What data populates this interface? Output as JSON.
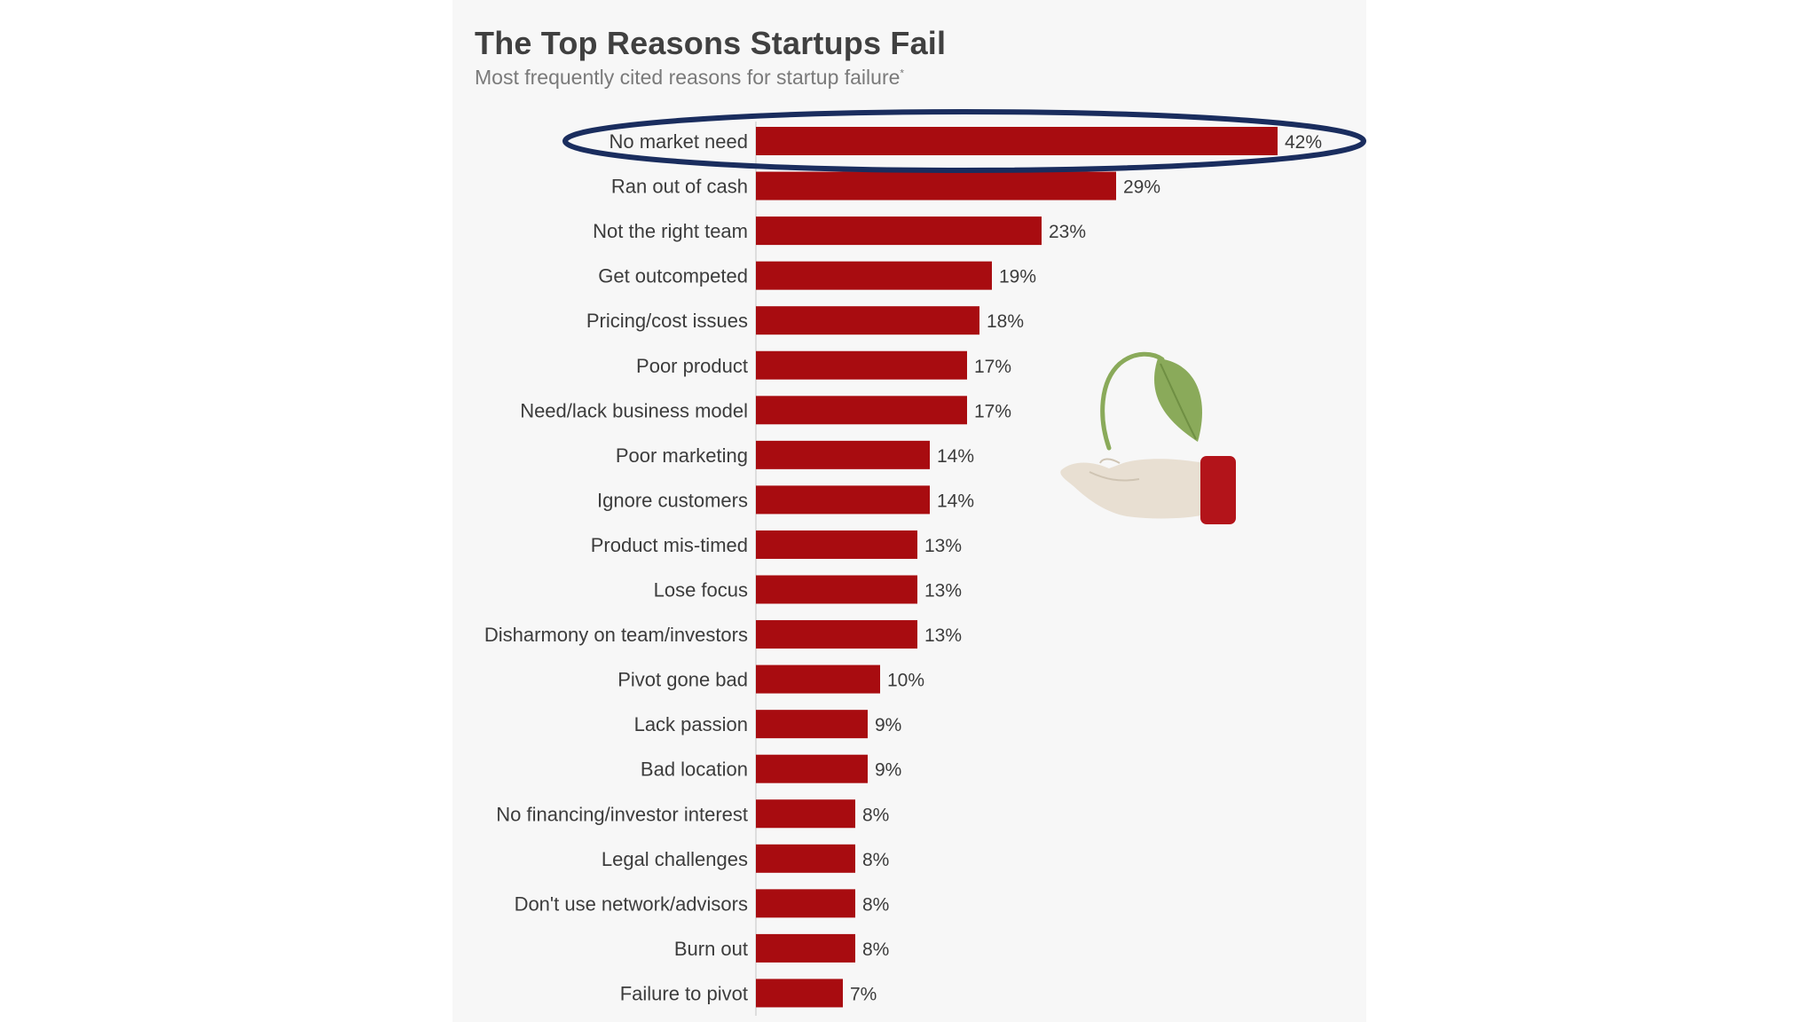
{
  "chart_data": {
    "type": "bar",
    "orientation": "horizontal",
    "title": "The Top Reasons Startups Fail",
    "subtitle": "Most frequently cited reasons for startup failure",
    "subtitle_mark": "*",
    "categories": [
      "No market need",
      "Ran out of cash",
      "Not the right team",
      "Get outcompeted",
      "Pricing/cost issues",
      "Poor product",
      "Need/lack business model",
      "Poor marketing",
      "Ignore customers",
      "Product mis-timed",
      "Lose focus",
      "Disharmony on team/investors",
      "Pivot gone bad",
      "Lack passion",
      "Bad location",
      "No financing/investor interest",
      "Legal challenges",
      "Don't use network/advisors",
      "Burn out",
      "Failure to pivot"
    ],
    "values": [
      42,
      29,
      23,
      19,
      18,
      17,
      17,
      14,
      14,
      13,
      13,
      13,
      10,
      9,
      9,
      8,
      8,
      8,
      8,
      7
    ],
    "value_suffix": "%",
    "xlim": [
      0,
      42
    ],
    "grid": false,
    "legend": "none",
    "highlighted_category": "No market need",
    "highlight_style": "ellipse outline",
    "bar_color": "#a80c10",
    "highlight_color": "#1a2d5e"
  },
  "illustration": {
    "name": "hand-holding-sprout-icon",
    "leaf_color": "#8aaa5a",
    "cuff_color": "#b3141a",
    "hand_color": "#e8dfd2"
  }
}
